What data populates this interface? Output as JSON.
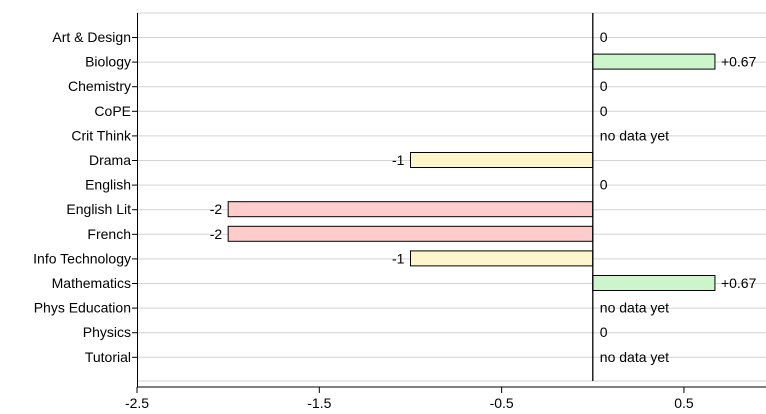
{
  "chart_data": {
    "type": "bar",
    "orientation": "horizontal",
    "categories": [
      "Art & Design",
      "Biology",
      "Chemistry",
      "CoPE",
      "Crit Think",
      "Drama",
      "English",
      "English Lit",
      "French",
      "Info Technology",
      "Mathematics",
      "Phys Education",
      "Physics",
      "Tutorial"
    ],
    "values": [
      0,
      0.67,
      0,
      0,
      null,
      -1,
      0,
      -2,
      -2,
      -1,
      0.67,
      null,
      0,
      null
    ],
    "value_labels": [
      "0",
      "+0.67",
      "0",
      "0",
      "no data yet",
      "-1",
      "0",
      "-2",
      "-2",
      "-1",
      "+0.67",
      "no data yet",
      "0",
      "no data yet"
    ],
    "xlim": [
      -2.5,
      0.95
    ],
    "xticks": [
      -2.5,
      -1.5,
      -0.5,
      0.5
    ],
    "xtick_labels": [
      "-2.5",
      "-1.5",
      "-0.5",
      "0.5"
    ],
    "grid": "horizontal",
    "legend": "none",
    "colors": {
      "positive": "#ccf5cc",
      "minus_one": "#fff5cc",
      "minus_two": "#ffcccc",
      "bar_stroke": "#000000",
      "grid": "#d3d3d3",
      "zero_line": "#000000",
      "text": "#000000"
    }
  }
}
